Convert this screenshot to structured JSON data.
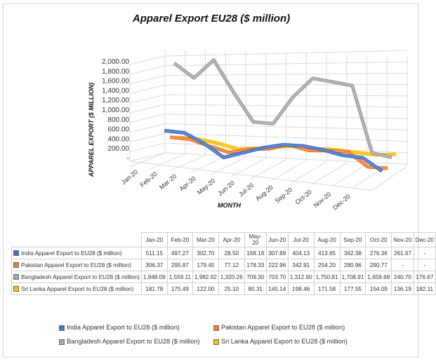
{
  "chart_data": {
    "type": "line",
    "style": "3d-line",
    "title": "Apparel  Export  EU28 ($ million)",
    "xlabel": "MONTH",
    "ylabel": "APPAREL EXPORT ($ MILLION)",
    "ylim": [
      0,
      2000
    ],
    "yticks": [
      "2,000.00",
      "1,800.00",
      "1,600.00",
      "1,400.00",
      "1,200.00",
      "1,000.00",
      "800.00",
      "600.00",
      "400.00",
      "200.00",
      "-"
    ],
    "categories": [
      "Jan-20",
      "Feb-20",
      "Mar-20",
      "Apr-20",
      "May-20",
      "Jun-20",
      "Jul-20",
      "Aug-20",
      "Sep-20",
      "Oct-20",
      "Nov-20",
      "Dec-20"
    ],
    "grid": true,
    "legend_position": "bottom",
    "series": [
      {
        "name": "India Apparel Export to EU28 ($ million)",
        "color": "#4472c4",
        "values": [
          511.15,
          497.27,
          302.7,
          28.5,
          168.18,
          307.89,
          404.13,
          413.65,
          362.38,
          276.36,
          261.67,
          null
        ],
        "labels": [
          "511.15",
          "497.27",
          "302.70",
          "28.50",
          "168.18",
          "307.89",
          "404.13",
          "413.65",
          "362.38",
          "276.36",
          "261.67",
          "-"
        ]
      },
      {
        "name": "Pakistan Apparel Export to EU28 ($ million)",
        "color": "#ed7d31",
        "values": [
          306.37,
          295.87,
          179.45,
          77.12,
          178.33,
          222.96,
          342.91,
          254.2,
          280.96,
          290.77,
          null,
          null
        ],
        "labels": [
          "306.37",
          "295.87",
          "179.45",
          "77.12",
          "178.33",
          "222.96",
          "342.91",
          "254.20",
          "280.96",
          "290.77",
          "-",
          "-"
        ]
      },
      {
        "name": "Bangladesh Apparel Export to EU28 ($ million)",
        "color": "#a5a5a5",
        "values": [
          1848.09,
          1559.11,
          1982.82,
          1320.26,
          709.3,
          703.7,
          1312.9,
          1750.81,
          1708.91,
          1659.68,
          240.7,
          176.67
        ],
        "labels": [
          "1,848.09",
          "1,559.11",
          "1,982.82",
          "1,320.26",
          "709.30",
          "703.70",
          "1,312.90",
          "1,750.81",
          "1,708.91",
          "1,659.68",
          "240.70",
          "176.67"
        ]
      },
      {
        "name": "Sri Lanka Apparel Export to EU28 ($ million)",
        "color": "#ffc000",
        "values": [
          181.78,
          175.49,
          122.0,
          25.1,
          80.31,
          145.14,
          198.46,
          171.58,
          177.55,
          154.09,
          136.19,
          182.11
        ],
        "labels": [
          "181.78",
          "175.49",
          "122.00",
          "25.10",
          "80.31",
          "145.14",
          "198.46",
          "171.58",
          "177.55",
          "154.09",
          "136.19",
          "182.11"
        ]
      }
    ]
  },
  "table": {
    "headers": [
      "Jan-20",
      "Feb-20",
      "Mar-20",
      "Apr-20",
      "May-20",
      "Jun-20",
      "Jul-20",
      "Aug-20",
      "Sep-20",
      "Oct-20",
      "Nov-20",
      "Dec-20"
    ]
  }
}
